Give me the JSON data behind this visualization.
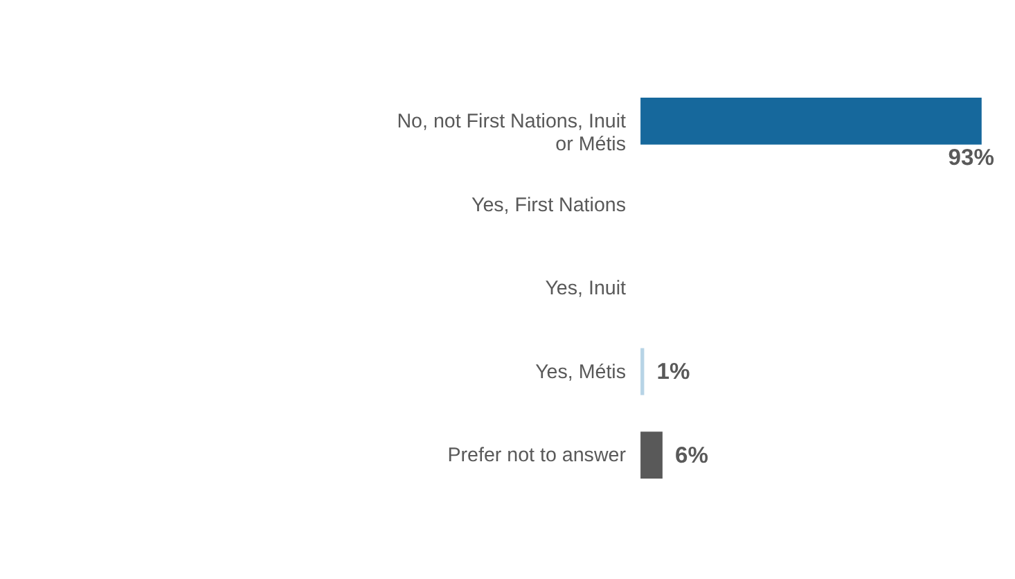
{
  "chart_data": {
    "type": "bar",
    "orientation": "horizontal",
    "categories": [
      "No, not First Nations, Inuit or Métis",
      "Yes, First Nations",
      "Yes, Inuit",
      "Yes, Métis",
      "Prefer not to answer"
    ],
    "values": [
      93,
      null,
      null,
      1,
      6
    ],
    "colors": [
      "#16689c",
      "#16689c",
      "#16689c",
      "#b7d4e6",
      "#595959"
    ],
    "value_labels": [
      "93%",
      null,
      null,
      "1%",
      "6%"
    ],
    "xlim": [
      0,
      93
    ],
    "tick_labels": "y"
  }
}
